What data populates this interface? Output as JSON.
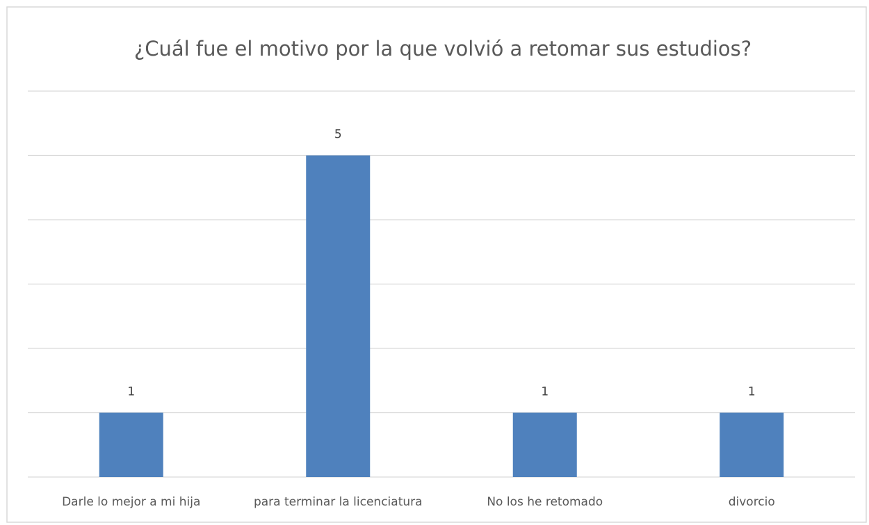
{
  "chart_data": {
    "type": "bar",
    "title": "¿Cuál fue el motivo por la que volvió a retomar sus estudios?",
    "categories": [
      "Darle lo mejor a mi hija",
      "para terminar la licenciatura",
      "No los he retomado",
      "divorcio"
    ],
    "values": [
      1,
      5,
      1,
      1
    ],
    "color": "#4f81bd",
    "ylim": [
      0,
      6
    ],
    "yticks": [
      0,
      1,
      2,
      3,
      4,
      5,
      6
    ],
    "grid": true
  }
}
